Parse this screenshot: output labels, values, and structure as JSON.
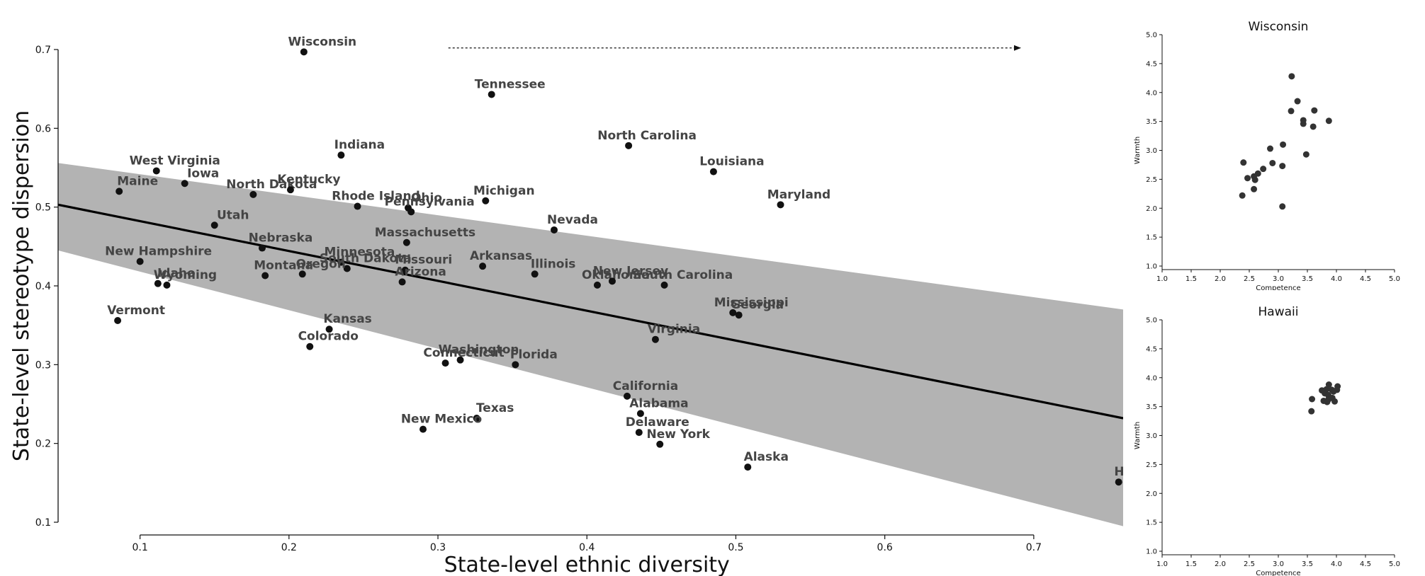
{
  "chart_data": [
    {
      "type": "scatter",
      "xlabel": "State-level ethnic diversity",
      "ylabel": "State-level stereotype dispersion",
      "xlim": [
        0.045,
        0.76
      ],
      "ylim": [
        0.1,
        0.7
      ],
      "x_ticks": [
        0.1,
        0.2,
        0.3,
        0.4,
        0.5,
        0.6,
        0.7
      ],
      "y_ticks": [
        0.1,
        0.2,
        0.3,
        0.4,
        0.5,
        0.6,
        0.7
      ],
      "grid": false,
      "regression_line": {
        "x": [
          0.045,
          0.76
        ],
        "y": [
          0.503,
          0.232
        ]
      },
      "confidence_band": {
        "x": [
          0.045,
          0.76
        ],
        "upper": [
          0.556,
          0.37
        ],
        "lower": [
          0.445,
          0.095
        ]
      },
      "points": [
        {
          "name": "Wisconsin",
          "x": 0.21,
          "y": 0.697
        },
        {
          "name": "Tennessee",
          "x": 0.336,
          "y": 0.643
        },
        {
          "name": "Indiana",
          "x": 0.235,
          "y": 0.566
        },
        {
          "name": "North Carolina",
          "x": 0.428,
          "y": 0.578
        },
        {
          "name": "Louisiana",
          "x": 0.485,
          "y": 0.545
        },
        {
          "name": "Maryland",
          "x": 0.53,
          "y": 0.503
        },
        {
          "name": "West Virginia",
          "x": 0.111,
          "y": 0.546
        },
        {
          "name": "Iowa",
          "x": 0.13,
          "y": 0.53
        },
        {
          "name": "Maine",
          "x": 0.086,
          "y": 0.52
        },
        {
          "name": "North Dakota",
          "x": 0.176,
          "y": 0.516
        },
        {
          "name": "Kentucky",
          "x": 0.201,
          "y": 0.522
        },
        {
          "name": "Rhode Island",
          "x": 0.246,
          "y": 0.501
        },
        {
          "name": "Ohio",
          "x": 0.28,
          "y": 0.499
        },
        {
          "name": "Pennsylvania",
          "x": 0.282,
          "y": 0.494
        },
        {
          "name": "Michigan",
          "x": 0.332,
          "y": 0.508
        },
        {
          "name": "Nevada",
          "x": 0.378,
          "y": 0.471
        },
        {
          "name": "Utah",
          "x": 0.15,
          "y": 0.477
        },
        {
          "name": "Massachusetts",
          "x": 0.279,
          "y": 0.455
        },
        {
          "name": "Nebraska",
          "x": 0.182,
          "y": 0.448
        },
        {
          "name": "New Hampshire",
          "x": 0.1,
          "y": 0.431
        },
        {
          "name": "Minnesota",
          "x": 0.235,
          "y": 0.43
        },
        {
          "name": "South Dakota",
          "x": 0.239,
          "y": 0.422
        },
        {
          "name": "Missouri",
          "x": 0.278,
          "y": 0.42
        },
        {
          "name": "Arkansas",
          "x": 0.33,
          "y": 0.425
        },
        {
          "name": "Illinois",
          "x": 0.365,
          "y": 0.415
        },
        {
          "name": "Montana",
          "x": 0.184,
          "y": 0.413
        },
        {
          "name": "Oregon",
          "x": 0.209,
          "y": 0.415
        },
        {
          "name": "Arizona",
          "x": 0.276,
          "y": 0.405
        },
        {
          "name": "Idaho",
          "x": 0.112,
          "y": 0.403
        },
        {
          "name": "Wyoming",
          "x": 0.118,
          "y": 0.401
        },
        {
          "name": "Oklahoma",
          "x": 0.407,
          "y": 0.401
        },
        {
          "name": "New Jersey",
          "x": 0.417,
          "y": 0.406
        },
        {
          "name": "South Carolina",
          "x": 0.452,
          "y": 0.401
        },
        {
          "name": "Mississippi",
          "x": 0.498,
          "y": 0.366
        },
        {
          "name": "Georgia",
          "x": 0.502,
          "y": 0.363
        },
        {
          "name": "Vermont",
          "x": 0.085,
          "y": 0.356
        },
        {
          "name": "Kansas",
          "x": 0.227,
          "y": 0.345
        },
        {
          "name": "Virginia",
          "x": 0.446,
          "y": 0.332
        },
        {
          "name": "Colorado",
          "x": 0.214,
          "y": 0.323
        },
        {
          "name": "Washington",
          "x": 0.315,
          "y": 0.306
        },
        {
          "name": "Connecticut",
          "x": 0.305,
          "y": 0.302
        },
        {
          "name": "Florida",
          "x": 0.352,
          "y": 0.3
        },
        {
          "name": "California",
          "x": 0.427,
          "y": 0.26
        },
        {
          "name": "Alabama",
          "x": 0.436,
          "y": 0.238
        },
        {
          "name": "Texas",
          "x": 0.326,
          "y": 0.232
        },
        {
          "name": "New Mexico",
          "x": 0.29,
          "y": 0.218
        },
        {
          "name": "Delaware",
          "x": 0.435,
          "y": 0.214
        },
        {
          "name": "New York",
          "x": 0.449,
          "y": 0.199
        },
        {
          "name": "Alaska",
          "x": 0.508,
          "y": 0.17
        },
        {
          "name": "Hawaii",
          "x": 0.757,
          "y": 0.151
        }
      ]
    },
    {
      "type": "scatter",
      "title": "Wisconsin",
      "xlabel": "Competence",
      "ylabel": "Warmth",
      "xlim": [
        1.0,
        5.0
      ],
      "ylim": [
        1.0,
        5.0
      ],
      "x_ticks": [
        "1.0",
        "1.5",
        "2.0",
        "2.5",
        "3.0",
        "3.5",
        "4.0",
        "4.5",
        "5.0"
      ],
      "y_ticks": [
        "1.0",
        "1.5",
        "2.0",
        "2.5",
        "3.0",
        "3.5",
        "4.0",
        "4.5",
        "5.0"
      ],
      "points": [
        {
          "x": 3.23,
          "y": 4.28
        },
        {
          "x": 3.33,
          "y": 3.85
        },
        {
          "x": 3.22,
          "y": 3.68
        },
        {
          "x": 3.62,
          "y": 3.69
        },
        {
          "x": 3.43,
          "y": 3.52
        },
        {
          "x": 3.43,
          "y": 3.46
        },
        {
          "x": 3.6,
          "y": 3.41
        },
        {
          "x": 3.87,
          "y": 3.51
        },
        {
          "x": 3.08,
          "y": 3.1
        },
        {
          "x": 2.86,
          "y": 3.03
        },
        {
          "x": 3.48,
          "y": 2.93
        },
        {
          "x": 2.4,
          "y": 2.79
        },
        {
          "x": 2.9,
          "y": 2.78
        },
        {
          "x": 3.07,
          "y": 2.73
        },
        {
          "x": 2.74,
          "y": 2.68
        },
        {
          "x": 2.65,
          "y": 2.6
        },
        {
          "x": 2.58,
          "y": 2.55
        },
        {
          "x": 2.47,
          "y": 2.52
        },
        {
          "x": 2.6,
          "y": 2.49
        },
        {
          "x": 2.58,
          "y": 2.33
        },
        {
          "x": 2.38,
          "y": 2.22
        },
        {
          "x": 3.07,
          "y": 2.03
        }
      ]
    },
    {
      "type": "scatter",
      "title": "Hawaii",
      "xlabel": "Competence",
      "ylabel": "Warmth",
      "xlim": [
        1.0,
        5.0
      ],
      "ylim": [
        1.0,
        5.0
      ],
      "x_ticks": [
        "1.0",
        "1.5",
        "2.0",
        "2.5",
        "3.0",
        "3.5",
        "4.0",
        "4.5",
        "5.0"
      ],
      "y_ticks": [
        "1.0",
        "1.5",
        "2.0",
        "2.5",
        "3.0",
        "3.5",
        "4.0",
        "4.5",
        "5.0"
      ],
      "points": [
        {
          "x": 3.87,
          "y": 3.88
        },
        {
          "x": 4.02,
          "y": 3.85
        },
        {
          "x": 3.75,
          "y": 3.78
        },
        {
          "x": 3.83,
          "y": 3.8
        },
        {
          "x": 3.92,
          "y": 3.79
        },
        {
          "x": 4.01,
          "y": 3.79
        },
        {
          "x": 3.8,
          "y": 3.73
        },
        {
          "x": 3.86,
          "y": 3.7
        },
        {
          "x": 3.95,
          "y": 3.76
        },
        {
          "x": 3.58,
          "y": 3.63
        },
        {
          "x": 3.78,
          "y": 3.6
        },
        {
          "x": 3.86,
          "y": 3.62
        },
        {
          "x": 3.93,
          "y": 3.65
        },
        {
          "x": 3.97,
          "y": 3.59
        },
        {
          "x": 3.84,
          "y": 3.58
        },
        {
          "x": 3.57,
          "y": 3.42
        }
      ]
    }
  ]
}
